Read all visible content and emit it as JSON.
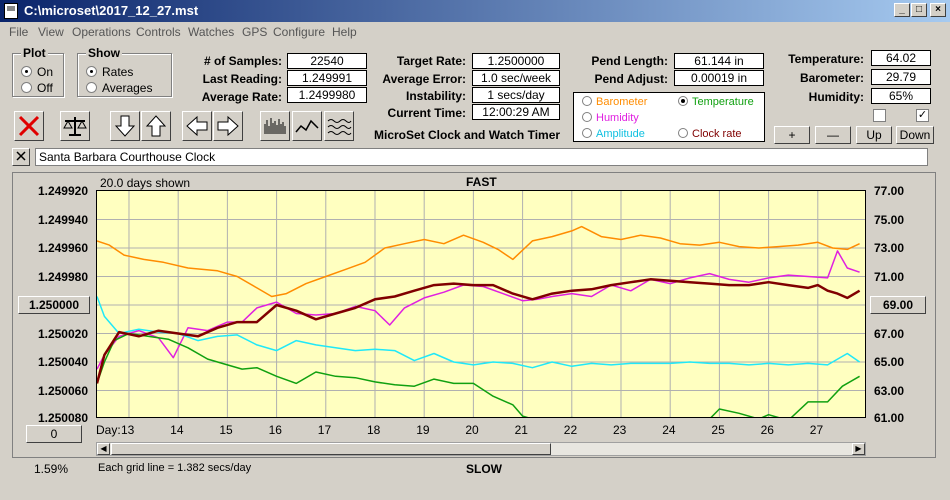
{
  "window": {
    "title": "C:\\microset\\2017_12_27.mst"
  },
  "menu": [
    "File",
    "View",
    "Operations",
    "Controls",
    "Watches",
    "GPS",
    "Configure",
    "Help"
  ],
  "plot_group": {
    "title": "Plot",
    "options": [
      "On",
      "Off"
    ],
    "selected": "On"
  },
  "show_group": {
    "title": "Show",
    "options": [
      "Rates",
      "Averages"
    ],
    "selected": "Rates"
  },
  "stats": {
    "samples_label": "# of Samples:",
    "samples": "22540",
    "last_reading_label": "Last Reading:",
    "last_reading": "1.249991",
    "average_rate_label": "Average Rate:",
    "average_rate": "1.2499980",
    "target_rate_label": "Target Rate:",
    "target_rate": "1.2500000",
    "average_error_label": "Average Error:",
    "average_error": "1.0 sec/week",
    "instability_label": "Instability:",
    "instability": "1 secs/day",
    "current_time_label": "Current Time:",
    "current_time": "12:00:29 AM",
    "pend_length_label": "Pend Length:",
    "pend_length": "61.144 in",
    "pend_adjust_label": "Pend Adjust:",
    "pend_adjust": "0.00019 in",
    "temperature_label": "Temperature:",
    "temperature": "64.02",
    "barometer_label": "Barometer:",
    "barometer": "29.79",
    "humidity_label": "Humidity:",
    "humidity": "65%"
  },
  "app_caption": "MicroSet Clock and Watch Timer",
  "legend": {
    "barometer": "Barometer",
    "temperature": "Temperature",
    "humidity": "Humidity",
    "amplitude": "Amplitude",
    "clock_rate": "Clock rate",
    "selected": "Temperature"
  },
  "sensor_buttons": {
    "plus": "+",
    "minus": "—",
    "up": "Up",
    "down": "Down"
  },
  "checkboxes": {
    "left_checked": false,
    "right_checked": true,
    "right_mark": "✓"
  },
  "clock_name": "Santa Barbara Courthouse Clock",
  "chart_header": {
    "days_shown": "20.0 days shown",
    "top_label": "FAST",
    "bottom_label": "SLOW"
  },
  "left_marker": "1.250000",
  "right_marker": "69.00",
  "offset_button": "0",
  "status": {
    "percent": "1.59%",
    "grid_info": "Each grid line = 1.382 secs/day"
  },
  "colors": {
    "barometer": "#ff8c00",
    "humidity": "#e020e0",
    "amplitude": "#20e8f8",
    "temperature": "#10a010",
    "clock_rate": "#800000",
    "plot_bg": "#ffffc0"
  },
  "chart_data": {
    "type": "line",
    "day_label": "Day:",
    "x_ticks": [
      "13",
      "14",
      "15",
      "16",
      "17",
      "18",
      "19",
      "20",
      "21",
      "22",
      "23",
      "24",
      "25",
      "26",
      "27"
    ],
    "y_left_ticks": [
      "1.249920",
      "1.249940",
      "1.249960",
      "1.249980",
      "1.250000",
      "1.250020",
      "1.250040",
      "1.250060",
      "1.250080"
    ],
    "y_right_ticks": [
      "77.00",
      "75.00",
      "73.00",
      "71.00",
      "69.00",
      "67.00",
      "65.00",
      "63.00",
      "61.00"
    ],
    "ylim_left": [
      1.25008,
      1.24992
    ],
    "ylim_right": [
      61,
      77
    ],
    "xlim": [
      12.35,
      28.0
    ],
    "grid": true,
    "series": [
      {
        "name": "Barometer",
        "color": "#ff8c00",
        "axis": "right",
        "x": [
          12.35,
          12.6,
          12.9,
          13.3,
          13.7,
          14.2,
          14.8,
          15.2,
          15.6,
          15.9,
          16.2,
          16.6,
          17.0,
          17.4,
          17.8,
          18.2,
          18.6,
          19.0,
          19.4,
          19.8,
          20.2,
          20.5,
          20.8,
          21.2,
          21.6,
          22.0,
          22.2,
          22.6,
          23.0,
          23.4,
          23.8,
          24.2,
          24.6,
          25.0,
          25.4,
          25.8,
          26.2,
          26.6,
          27.0,
          27.3,
          27.6,
          27.85
        ],
        "y": [
          73.5,
          73.2,
          72.5,
          72.2,
          72.0,
          71.6,
          71.4,
          71.0,
          70.2,
          69.6,
          69.8,
          70.5,
          71.0,
          71.5,
          72.0,
          73.0,
          73.3,
          73.6,
          73.3,
          73.9,
          73.4,
          72.9,
          72.2,
          73.5,
          73.8,
          74.2,
          74.5,
          73.8,
          73.6,
          73.9,
          73.7,
          73.3,
          73.2,
          73.4,
          73.1,
          73.0,
          73.1,
          73.2,
          73.4,
          73.0,
          72.9,
          73.3
        ]
      },
      {
        "name": "Humidity",
        "color": "#e020e0",
        "axis": "right",
        "x": [
          12.35,
          12.5,
          12.8,
          13.2,
          13.6,
          13.9,
          14.2,
          14.6,
          15.0,
          15.3,
          15.6,
          16.0,
          16.4,
          16.8,
          17.2,
          17.6,
          18.0,
          18.3,
          18.6,
          19.0,
          19.4,
          19.8,
          20.2,
          20.6,
          21.0,
          21.3,
          21.6,
          22.0,
          22.4,
          22.8,
          23.2,
          23.6,
          24.0,
          24.4,
          24.8,
          25.2,
          25.6,
          26.0,
          26.4,
          26.8,
          27.2,
          27.4,
          27.6,
          27.85
        ],
        "y": [
          64.5,
          65.5,
          66.8,
          67.2,
          66.7,
          65.3,
          67.4,
          67.2,
          67.8,
          67.8,
          68.8,
          69.2,
          68.4,
          68.3,
          68.4,
          68.9,
          68.6,
          67.6,
          68.8,
          69.5,
          69.9,
          70.4,
          70.3,
          69.8,
          69.3,
          69.4,
          69.6,
          69.8,
          69.6,
          70.4,
          70.0,
          70.8,
          70.5,
          70.9,
          71.2,
          70.8,
          70.6,
          70.9,
          71.1,
          71.0,
          70.9,
          72.8,
          71.6,
          71.3
        ]
      },
      {
        "name": "Amplitude",
        "color": "#20e8f8",
        "axis": "right",
        "x": [
          12.35,
          12.5,
          12.8,
          13.2,
          13.6,
          14.0,
          14.4,
          14.8,
          15.2,
          15.6,
          16.0,
          16.4,
          16.8,
          17.2,
          17.6,
          18.0,
          18.4,
          18.8,
          19.2,
          19.6,
          20.0,
          20.4,
          20.8,
          21.2,
          21.6,
          22.0,
          22.4,
          22.8,
          23.2,
          23.6,
          24.0,
          24.4,
          24.8,
          25.2,
          25.6,
          26.0,
          26.4,
          26.8,
          27.2,
          27.6,
          27.85
        ],
        "y": [
          69.6,
          68.2,
          67.0,
          67.3,
          67.1,
          67.0,
          66.5,
          66.8,
          66.9,
          66.2,
          65.8,
          66.5,
          66.2,
          66.0,
          65.8,
          65.9,
          65.8,
          65.1,
          65.6,
          65.0,
          64.8,
          65.0,
          64.9,
          64.6,
          65.0,
          64.7,
          64.9,
          64.8,
          64.9,
          64.9,
          64.9,
          65.0,
          64.9,
          64.9,
          64.8,
          64.9,
          64.8,
          64.9,
          64.8,
          65.6,
          65.0
        ]
      },
      {
        "name": "Temperature",
        "color": "#10a010",
        "axis": "right",
        "x": [
          12.35,
          12.5,
          12.7,
          13.0,
          13.4,
          13.8,
          14.2,
          14.6,
          15.0,
          15.3,
          15.6,
          16.0,
          16.4,
          16.8,
          17.2,
          17.6,
          18.0,
          18.4,
          18.8,
          19.2,
          19.6,
          20.0,
          20.4,
          20.8,
          21.0,
          21.2,
          21.6,
          22.0,
          22.4,
          22.8,
          23.2,
          23.6,
          24.0,
          24.4,
          24.8,
          25.0,
          25.4,
          25.8,
          26.0,
          26.4,
          26.8,
          27.2,
          27.5,
          27.85
        ],
        "y": [
          63.5,
          65.0,
          66.5,
          67.0,
          66.8,
          66.6,
          66.0,
          65.2,
          64.8,
          64.5,
          64.6,
          64.0,
          63.5,
          64.3,
          64.0,
          63.9,
          63.6,
          63.4,
          63.3,
          63.8,
          63.5,
          63.5,
          62.6,
          62.0,
          61.2,
          61.0,
          61.0,
          61.1,
          61.0,
          61.0,
          61.0,
          61.0,
          61.0,
          61.0,
          61.0,
          61.7,
          61.4,
          61.0,
          61.3,
          60.9,
          62.2,
          62.2,
          63.3,
          64.0
        ]
      },
      {
        "name": "Clock rate",
        "color": "#800000",
        "axis": "left",
        "x": [
          12.35,
          12.5,
          12.8,
          13.2,
          13.6,
          14.0,
          14.4,
          14.8,
          15.2,
          15.6,
          16.0,
          16.4,
          16.8,
          17.2,
          17.6,
          18.0,
          18.4,
          18.8,
          19.2,
          19.6,
          20.0,
          20.4,
          20.8,
          21.2,
          21.6,
          22.0,
          22.4,
          22.8,
          23.2,
          23.6,
          24.0,
          24.4,
          24.8,
          25.2,
          25.6,
          26.0,
          26.4,
          26.8,
          27.0,
          27.2,
          27.4,
          27.6,
          27.85
        ],
        "y": [
          1.250055,
          1.250035,
          1.250019,
          1.250022,
          1.250018,
          1.25002,
          1.250022,
          1.250016,
          1.250012,
          1.250012,
          1.25,
          1.250004,
          1.25001,
          1.250006,
          1.250002,
          1.249996,
          1.249994,
          1.24999,
          1.249986,
          1.249985,
          1.249986,
          1.249986,
          1.249992,
          1.249996,
          1.249992,
          1.24999,
          1.249989,
          1.249986,
          1.249984,
          1.249982,
          1.249983,
          1.249984,
          1.249985,
          1.249986,
          1.249986,
          1.249984,
          1.249986,
          1.249988,
          1.249986,
          1.24999,
          1.249992,
          1.249995,
          1.24999
        ]
      }
    ]
  }
}
